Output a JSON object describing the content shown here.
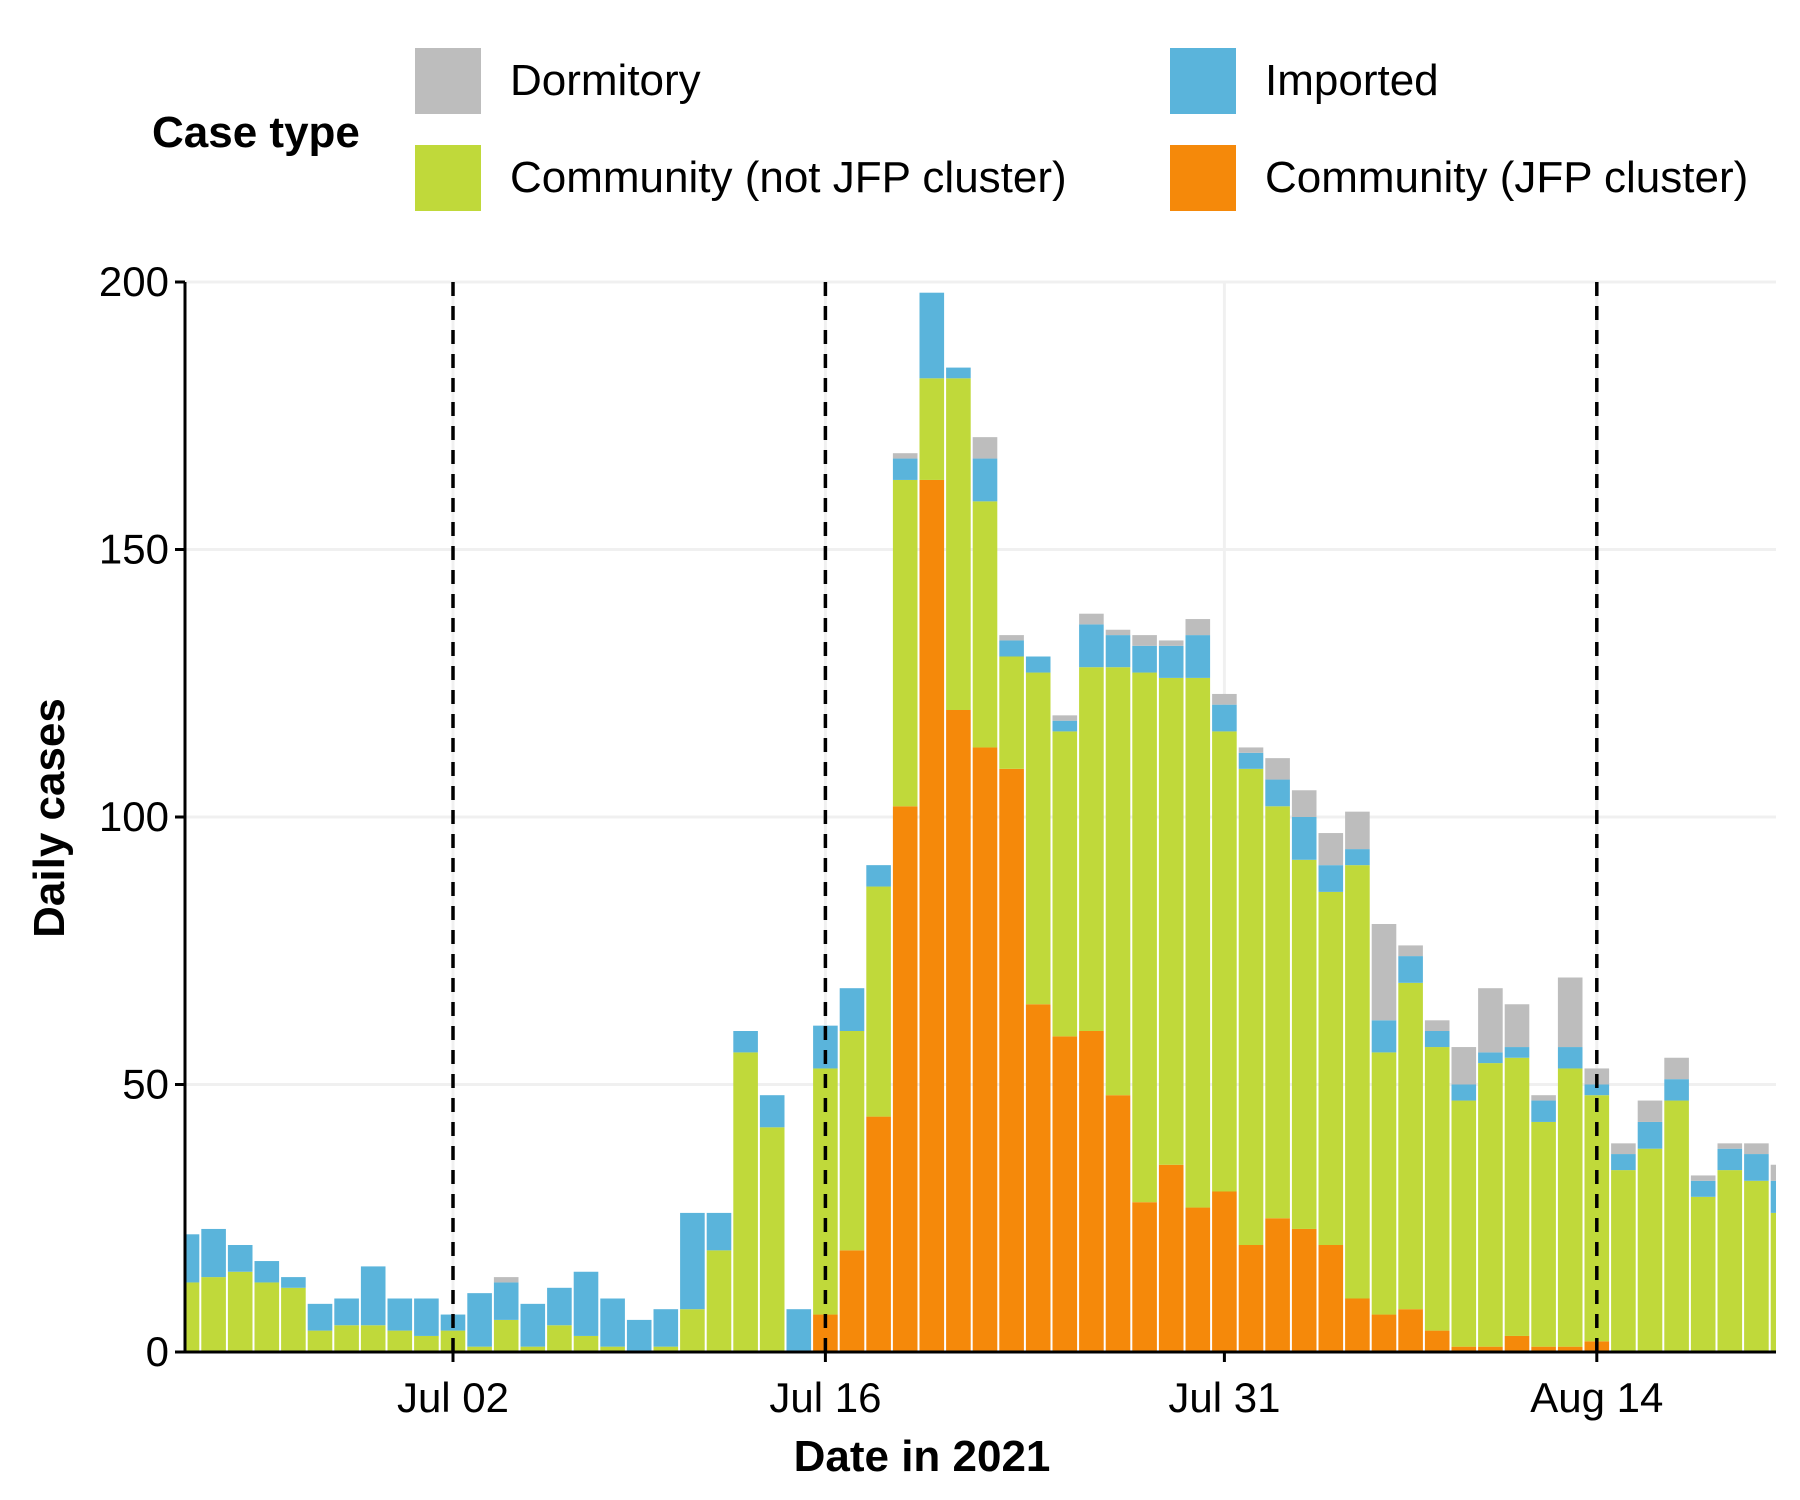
{
  "legend": {
    "title": "Case type",
    "items": [
      {
        "key": "dormitory",
        "label": "Dormitory",
        "color": "#bdbdbd"
      },
      {
        "key": "imported",
        "label": "Imported",
        "color": "#5ab4db"
      },
      {
        "key": "community_not_jfp",
        "label": "Community (not JFP cluster)",
        "color": "#c0d93a"
      },
      {
        "key": "community_jfp",
        "label": "Community (JFP cluster)",
        "color": "#f5890a"
      }
    ]
  },
  "chart_data": {
    "type": "bar",
    "stacked": true,
    "xlabel": "Date in 2021",
    "ylabel": "Daily cases",
    "ylim": [
      0,
      200
    ],
    "y_ticks": [
      0,
      50,
      100,
      150,
      200
    ],
    "x_ticks": [
      "Jul 02",
      "Jul 16",
      "Jul 31",
      "Aug 14"
    ],
    "vlines": [
      "Jul 02",
      "Jul 16",
      "Aug 14"
    ],
    "grid": true,
    "legend_position": "top",
    "categories": [
      "Jun 22",
      "Jun 23",
      "Jun 24",
      "Jun 25",
      "Jun 26",
      "Jun 27",
      "Jun 28",
      "Jun 29",
      "Jun 30",
      "Jul 01",
      "Jul 02",
      "Jul 03",
      "Jul 04",
      "Jul 05",
      "Jul 06",
      "Jul 07",
      "Jul 08",
      "Jul 09",
      "Jul 10",
      "Jul 11",
      "Jul 12",
      "Jul 13",
      "Jul 14",
      "Jul 15",
      "Jul 16",
      "Jul 17",
      "Jul 18",
      "Jul 19",
      "Jul 20",
      "Jul 21",
      "Jul 22",
      "Jul 23",
      "Jul 24",
      "Jul 25",
      "Jul 26",
      "Jul 27",
      "Jul 28",
      "Jul 29",
      "Jul 30",
      "Jul 31",
      "Aug 01",
      "Aug 02",
      "Aug 03",
      "Aug 04",
      "Aug 05",
      "Aug 06",
      "Aug 07",
      "Aug 08",
      "Aug 09",
      "Aug 10",
      "Aug 11",
      "Aug 12",
      "Aug 13",
      "Aug 14",
      "Aug 15",
      "Aug 16",
      "Aug 17",
      "Aug 18",
      "Aug 19",
      "Aug 20",
      "Aug 21"
    ],
    "series": [
      {
        "name": "Community (JFP cluster)",
        "key": "community_jfp",
        "values": [
          0,
          0,
          0,
          0,
          0,
          0,
          0,
          0,
          0,
          0,
          0,
          0,
          0,
          0,
          0,
          0,
          0,
          0,
          0,
          0,
          0,
          0,
          0,
          0,
          7,
          19,
          44,
          102,
          163,
          120,
          113,
          109,
          65,
          59,
          60,
          48,
          28,
          35,
          27,
          30,
          20,
          25,
          23,
          20,
          10,
          7,
          8,
          4,
          1,
          1,
          3,
          1,
          1,
          2,
          0,
          0,
          0,
          0,
          0,
          0,
          0
        ]
      },
      {
        "name": "Community (not JFP cluster)",
        "key": "community_not_jfp",
        "values": [
          13,
          14,
          15,
          13,
          12,
          4,
          5,
          5,
          4,
          3,
          4,
          1,
          6,
          1,
          5,
          3,
          1,
          0,
          1,
          8,
          19,
          56,
          42,
          0,
          46,
          41,
          43,
          61,
          19,
          62,
          46,
          21,
          62,
          57,
          68,
          80,
          99,
          91,
          99,
          86,
          89,
          77,
          69,
          66,
          81,
          49,
          61,
          53,
          46,
          53,
          52,
          42,
          52,
          46,
          34,
          38,
          47,
          29,
          34,
          32,
          26
        ]
      },
      {
        "name": "Imported",
        "key": "imported",
        "values": [
          9,
          9,
          5,
          4,
          2,
          5,
          5,
          11,
          6,
          7,
          3,
          10,
          7,
          8,
          7,
          12,
          9,
          6,
          7,
          18,
          7,
          4,
          6,
          8,
          8,
          8,
          4,
          4,
          16,
          2,
          8,
          3,
          3,
          2,
          8,
          6,
          5,
          6,
          8,
          5,
          3,
          5,
          8,
          5,
          3,
          6,
          5,
          3,
          3,
          2,
          2,
          4,
          4,
          2,
          3,
          5,
          4,
          3,
          4,
          5,
          6
        ]
      },
      {
        "name": "Dormitory",
        "key": "dormitory",
        "values": [
          0,
          0,
          0,
          0,
          0,
          0,
          0,
          0,
          0,
          0,
          0,
          0,
          1,
          0,
          0,
          0,
          0,
          0,
          0,
          0,
          0,
          0,
          0,
          0,
          0,
          0,
          0,
          1,
          0,
          0,
          4,
          1,
          0,
          1,
          2,
          1,
          2,
          1,
          3,
          2,
          1,
          4,
          5,
          6,
          7,
          18,
          2,
          2,
          7,
          12,
          8,
          1,
          13,
          3,
          2,
          4,
          4,
          1,
          1,
          2,
          3
        ]
      }
    ]
  }
}
